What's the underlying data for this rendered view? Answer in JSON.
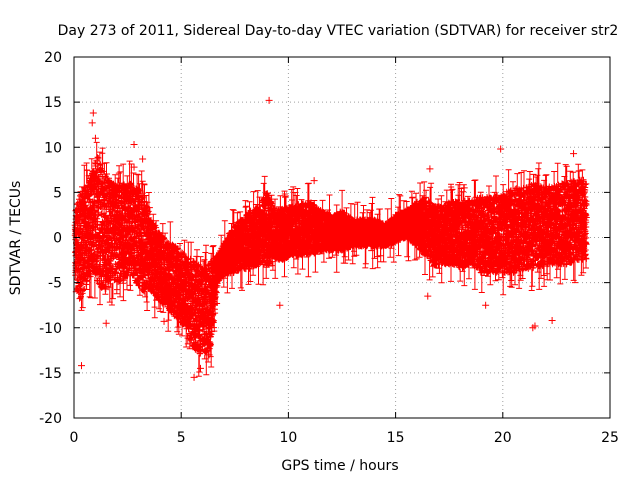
{
  "chart_data": {
    "type": "scatter",
    "title": "Day 273 of 2011, Sidereal Day-to-day VTEC variation (SDTVAR) for receiver str2",
    "xlabel": "GPS time / hours",
    "ylabel": "SDTVAR / TECUs",
    "xlim": [
      0,
      25
    ],
    "ylim": [
      -20,
      20
    ],
    "x_ticks": [
      0,
      5,
      10,
      15,
      20,
      25
    ],
    "y_ticks": [
      -20,
      -15,
      -10,
      -5,
      0,
      5,
      10,
      15,
      20
    ],
    "grid": true,
    "marker": "+",
    "series": [
      {
        "name": "SDTVAR",
        "color": "#ff0000",
        "envelope": {
          "x": [
            0.05,
            0.3,
            0.6,
            0.9,
            1.1,
            1.4,
            1.8,
            2.2,
            2.6,
            2.9,
            3.2,
            3.6,
            4.0,
            4.4,
            4.8,
            5.2,
            5.5,
            5.8,
            6.1,
            6.4,
            6.7,
            7.0,
            7.4,
            7.8,
            8.2,
            8.6,
            9.0,
            9.4,
            9.8,
            10.2,
            10.6,
            11.0,
            11.5,
            12.0,
            12.5,
            13.0,
            13.5,
            14.0,
            14.5,
            15.0,
            15.5,
            16.0,
            16.4,
            16.8,
            17.2,
            17.6,
            18.0,
            18.5,
            19.0,
            19.5,
            20.0,
            20.5,
            21.0,
            21.5,
            22.0,
            22.5,
            23.0,
            23.5,
            23.9
          ],
          "upper": [
            3,
            5,
            6,
            8,
            9,
            7,
            6,
            6,
            6,
            5.5,
            5,
            2,
            0.5,
            -0.5,
            -1,
            -2,
            -2.5,
            -3,
            -3.5,
            -2.5,
            -2,
            -0.5,
            1,
            2,
            3,
            3.5,
            5,
            3,
            3.2,
            3.5,
            3.8,
            4,
            3,
            2.5,
            3,
            2,
            2,
            2,
            1.5,
            2.5,
            3,
            4,
            4.5,
            3.5,
            3.5,
            4,
            4,
            4.2,
            4.5,
            4.5,
            5,
            5.5,
            5.5,
            6,
            5.5,
            6,
            6,
            6.5,
            6.5
          ],
          "lower": [
            -5,
            -7,
            -5,
            -4,
            -5,
            -6,
            -5,
            -5,
            -4,
            -5,
            -6,
            -6,
            -7,
            -8,
            -9,
            -10,
            -12,
            -13,
            -13,
            -12,
            -5,
            -4,
            -4,
            -3.5,
            -3.5,
            -3,
            -3,
            -2.5,
            -2.5,
            -2,
            -2,
            -2,
            -1.5,
            -1.5,
            -1.5,
            -1,
            -1,
            -1,
            -1,
            -0.5,
            0,
            -1,
            -2,
            -3,
            -3,
            -3,
            -3.5,
            -3,
            -4,
            -4,
            -4,
            -4,
            -3.5,
            -3.5,
            -3,
            -3,
            -3,
            -2.5,
            -2.5
          ]
        },
        "outliers": [
          [
            0.9,
            13.8
          ],
          [
            0.85,
            12.7
          ],
          [
            1.0,
            11.0
          ],
          [
            2.8,
            10.3
          ],
          [
            3.2,
            8.7
          ],
          [
            9.1,
            15.2
          ],
          [
            9.6,
            -7.5
          ],
          [
            11.2,
            6.3
          ],
          [
            16.6,
            7.6
          ],
          [
            16.5,
            -6.5
          ],
          [
            19.9,
            9.8
          ],
          [
            21.4,
            -10.0
          ],
          [
            21.5,
            -9.8
          ],
          [
            22.3,
            -9.2
          ],
          [
            0.35,
            -14.2
          ],
          [
            5.6,
            -15.5
          ],
          [
            5.9,
            -14.5
          ],
          [
            6.3,
            -13.0
          ],
          [
            4.2,
            -9.3
          ],
          [
            19.2,
            -7.5
          ],
          [
            1.5,
            -9.5
          ],
          [
            2.8,
            7.8
          ],
          [
            23.3,
            9.3
          ],
          [
            18.2,
            5.5
          ]
        ]
      }
    ]
  }
}
